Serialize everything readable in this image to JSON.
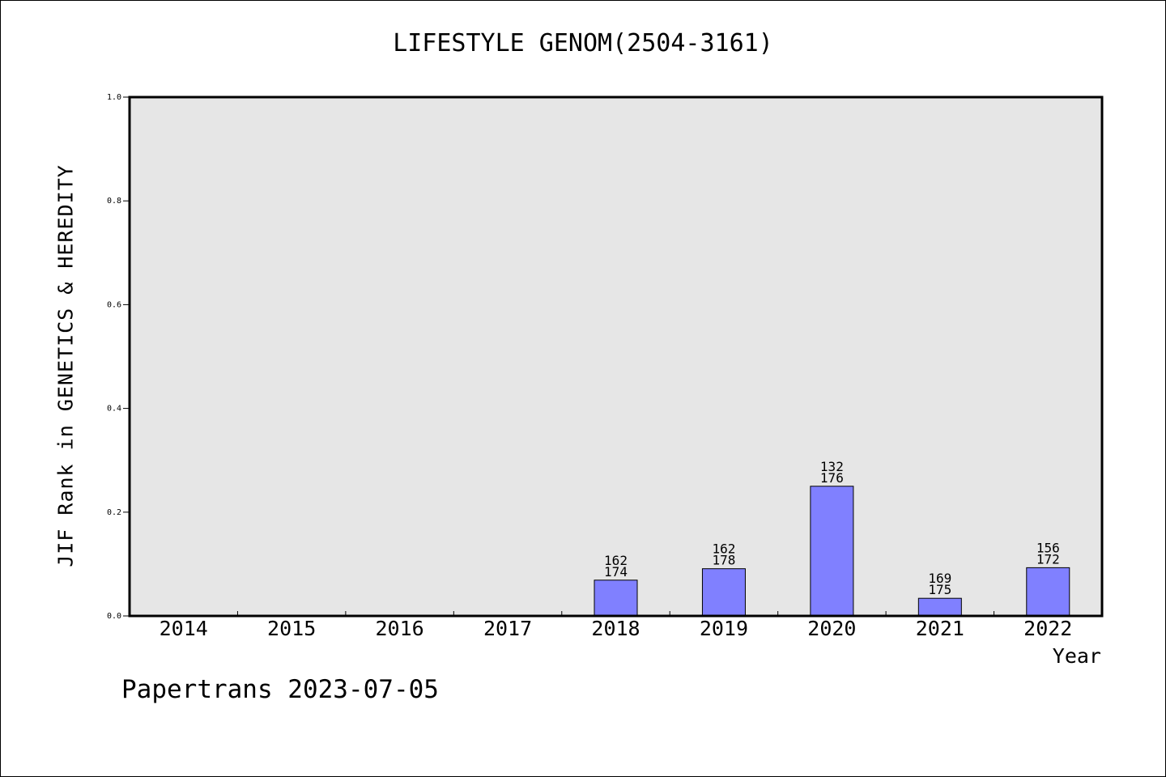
{
  "chart_data": {
    "type": "bar",
    "title": "LIFESTYLE GENOM(2504-3161)",
    "xlabel": "Year",
    "ylabel": "JIF Rank in GENETICS & HEREDITY",
    "ylim": [
      0,
      1.0
    ],
    "yticks": [
      "0.0",
      "0.2",
      "0.4",
      "0.6",
      "0.8",
      "1.0"
    ],
    "grid": false,
    "categories": [
      "2014",
      "2015",
      "2016",
      "2017",
      "2018",
      "2019",
      "2020",
      "2021",
      "2022"
    ],
    "values": [
      null,
      null,
      null,
      null,
      0.069,
      0.091,
      0.25,
      0.034,
      0.093
    ],
    "labels": [
      null,
      null,
      null,
      null,
      [
        "162",
        "174"
      ],
      [
        "162",
        "178"
      ],
      [
        "132",
        "176"
      ],
      [
        "169",
        "175"
      ],
      [
        "156",
        "172"
      ]
    ],
    "colors": {
      "bar": "#8080ff",
      "plot_bg": "#e6e6e6"
    }
  },
  "footer": "Papertrans 2023-07-05"
}
